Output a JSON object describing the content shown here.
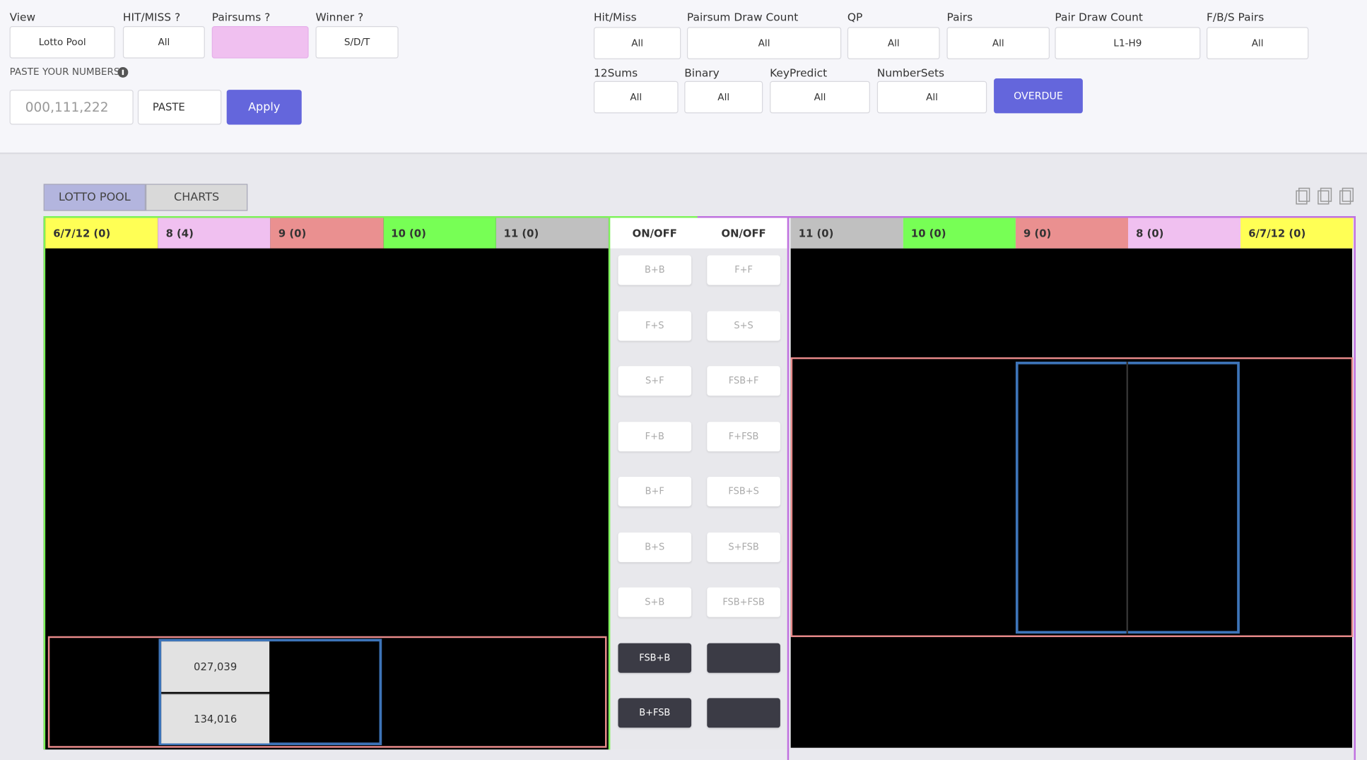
{
  "left_filters": [
    {
      "label": "View",
      "value": "Lotto Pool"
    },
    {
      "label": "HIT/MISS ?",
      "value": "All"
    },
    {
      "label": "Pairsums ?"
    },
    {
      "label": "Winner ?",
      "value": "S/D/T"
    }
  ],
  "paste": {
    "label": "PASTE YOUR NUMBERS",
    "placeholder": "000,111,222",
    "paste_button": "PASTE",
    "apply_button": "Apply"
  },
  "right_filters": [
    {
      "label": "Hit/Miss",
      "value": "All"
    },
    {
      "label": "Pairsum Draw Count",
      "value": "All"
    },
    {
      "label": "QP",
      "value": "All"
    },
    {
      "label": "Pairs",
      "value": "All"
    },
    {
      "label": "Pair Draw Count",
      "value": "L1-H9"
    },
    {
      "label": "F/B/S Pairs",
      "value": "All"
    },
    {
      "label": "12Sums",
      "value": "All"
    },
    {
      "label": "Binary",
      "value": "All"
    },
    {
      "label": "KeyPredict",
      "value": "All"
    },
    {
      "label": "NumberSets",
      "value": "All"
    }
  ],
  "overdue_button": "OVERDUE",
  "tabs": [
    "LOTTO POOL",
    "CHARTS"
  ],
  "left_headers": [
    "6/7/12 (0)",
    "8 (4)",
    "9 (0)",
    "10 (0)",
    "11 (0)"
  ],
  "middle": {
    "headers": [
      "ON/OFF",
      "ON/OFF"
    ],
    "left_buttons": [
      "B+B",
      "F+S",
      "S+F",
      "F+B",
      "B+F",
      "B+S",
      "S+B",
      "FSB+B",
      "B+FSB"
    ],
    "right_buttons": [
      "F+F",
      "S+S",
      "FSB+F",
      "F+FSB",
      "FSB+S",
      "S+FSB",
      "FSB+FSB"
    ]
  },
  "right_headers": [
    "11 (0)",
    "10 (0)",
    "9 (0)",
    "8 (0)",
    "6/7/12 (0)"
  ],
  "cells": [
    "027,039",
    "134,016"
  ]
}
